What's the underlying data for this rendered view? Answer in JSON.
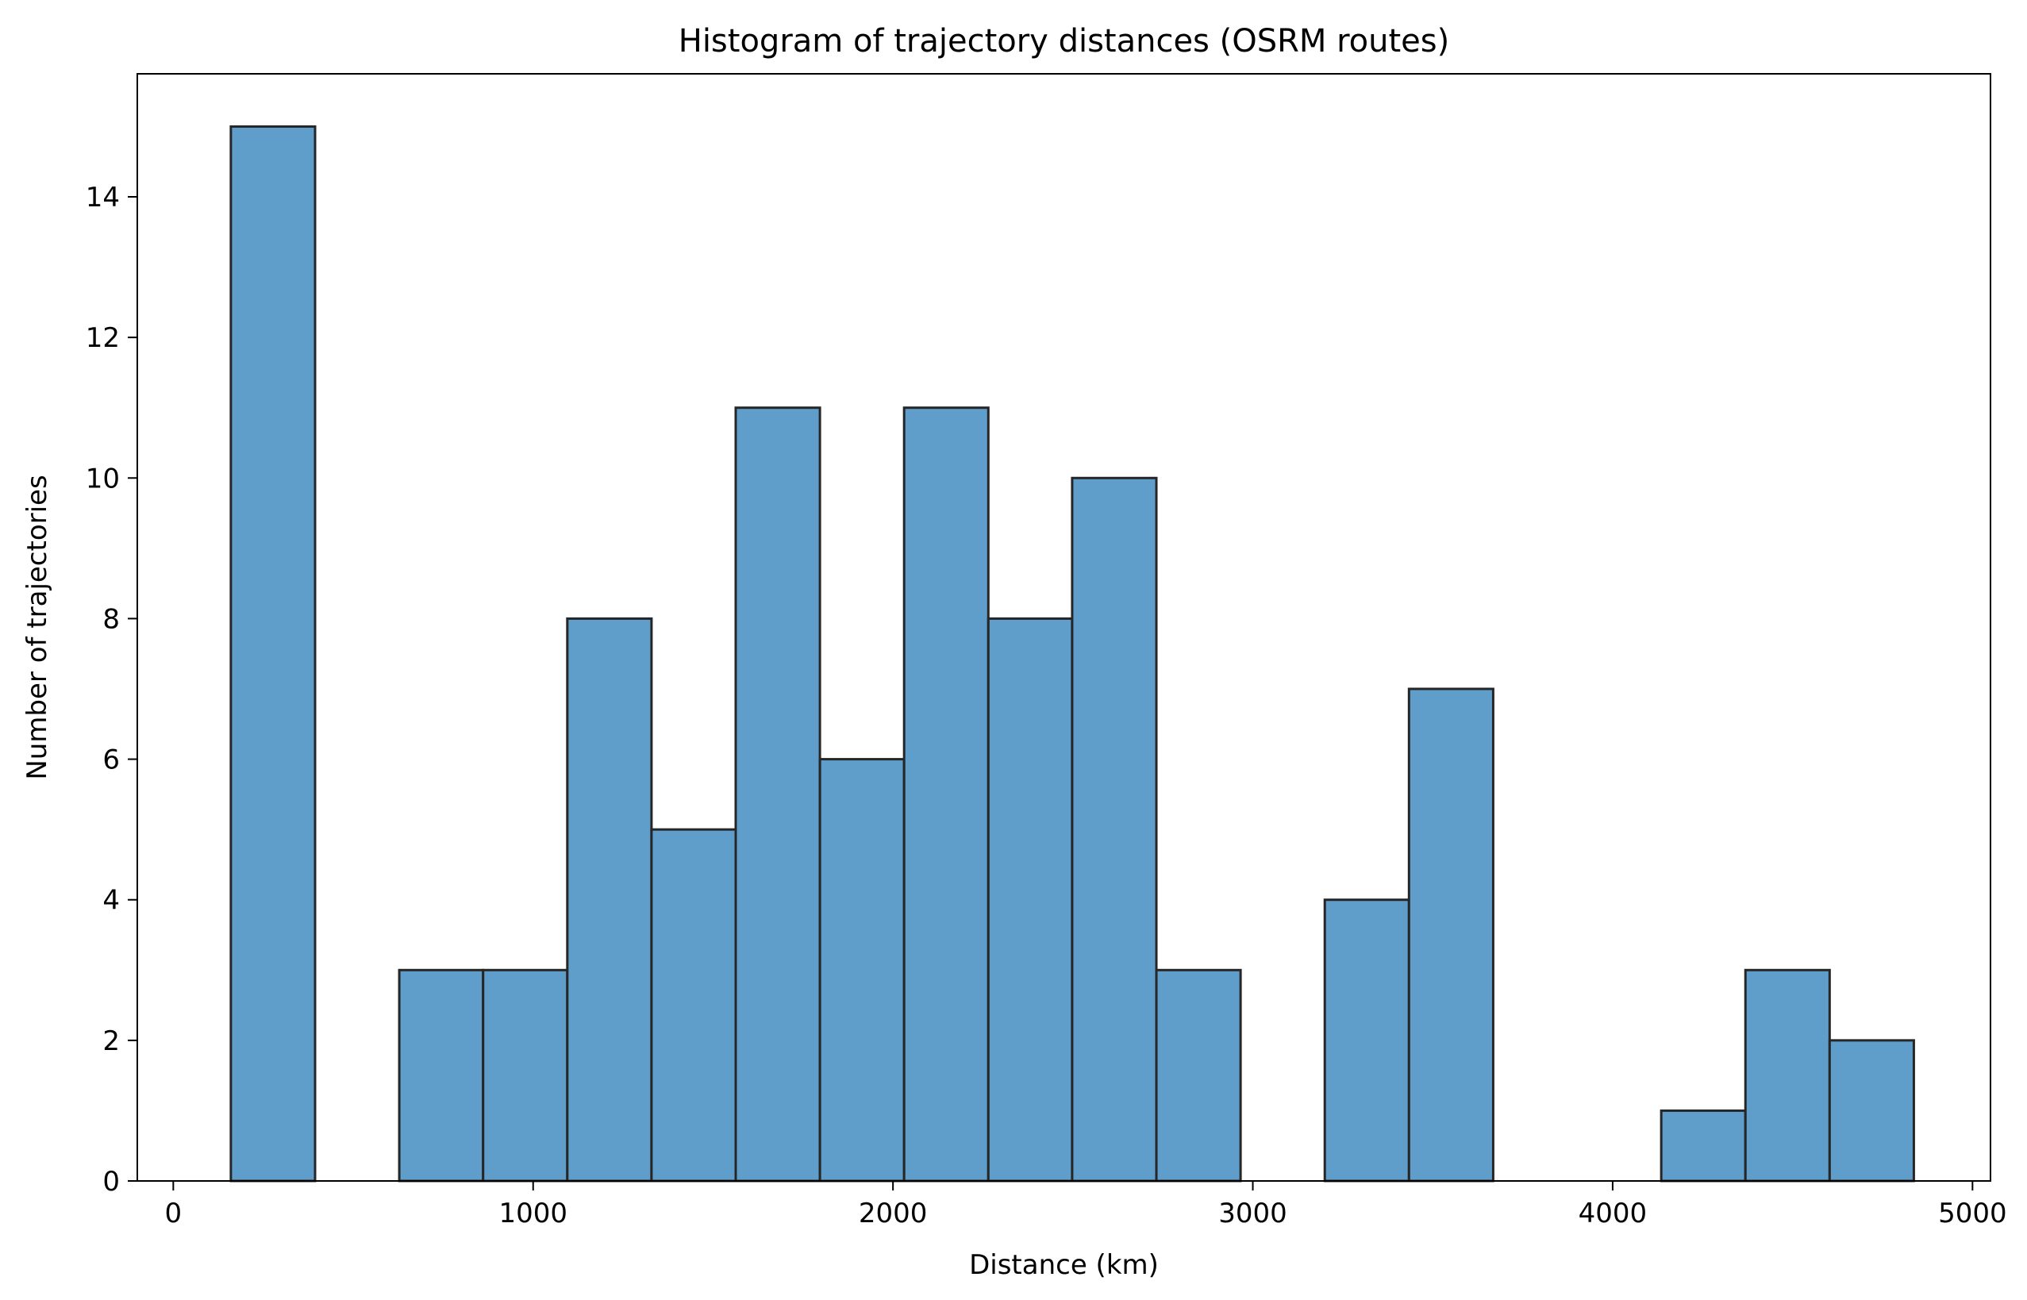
{
  "chart_data": {
    "type": "bar",
    "title": "Histogram of trajectory distances (OSRM routes)",
    "xlabel": "Distance (km)",
    "ylabel": "Number of trajectories",
    "xlim": [
      -100,
      5050
    ],
    "ylim": [
      0,
      15.75
    ],
    "x_ticks": [
      0,
      1000,
      2000,
      3000,
      4000,
      5000
    ],
    "y_ticks": [
      0,
      2,
      4,
      6,
      8,
      10,
      12,
      14
    ],
    "bin_edges": [
      160,
      394,
      628,
      861,
      1095,
      1329,
      1563,
      1797,
      2031,
      2265,
      2498,
      2732,
      2966,
      3200,
      3434,
      3668,
      3902,
      4135,
      4369,
      4603,
      4837
    ],
    "values": [
      15,
      0,
      3,
      3,
      8,
      5,
      11,
      6,
      11,
      8,
      10,
      3,
      0,
      4,
      7,
      0,
      0,
      1,
      3,
      2
    ],
    "bar_color": "#5f9ecb",
    "edge_color": "#262626",
    "grid": false,
    "legend": "none"
  }
}
